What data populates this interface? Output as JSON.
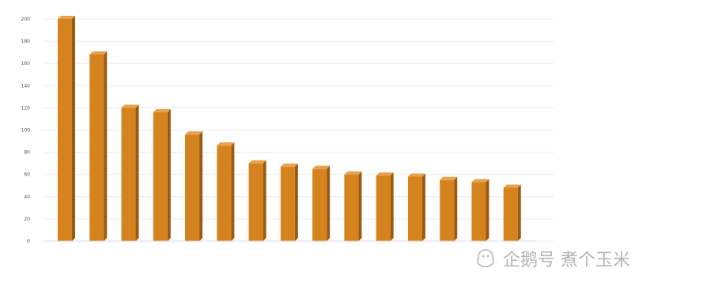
{
  "chart_data": {
    "type": "bar",
    "categories": [
      "",
      "",
      "",
      "",
      "",
      "",
      "",
      "",
      "",
      "",
      "",
      "",
      "",
      "",
      ""
    ],
    "values": [
      200,
      168,
      120,
      116,
      96,
      86,
      70,
      67,
      65,
      60,
      59,
      58,
      55,
      53,
      48
    ],
    "yticks": [
      0,
      20,
      40,
      60,
      80,
      100,
      120,
      140,
      160,
      180,
      200
    ],
    "ylim": [
      0,
      200
    ],
    "grid": true,
    "bar_color": "#d5831f",
    "title": "",
    "xlabel": "",
    "ylabel": ""
  },
  "watermark": {
    "text": "企鹅号 煮个玉米",
    "icon": "penguin-logo-icon"
  }
}
